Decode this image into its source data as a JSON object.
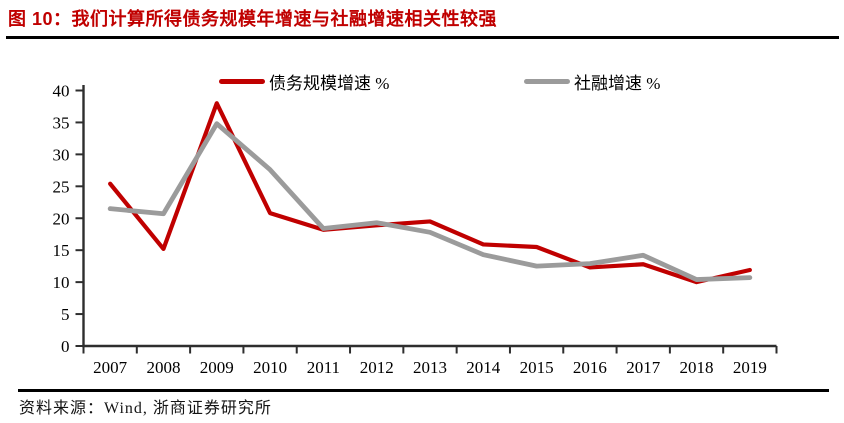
{
  "header": {
    "title": "图 10：我们计算所得债务规模年增速与社融增速相关性较强"
  },
  "footer": {
    "source": "资料来源：Wind, 浙商证券研究所"
  },
  "colors": {
    "title_red": "#c00000",
    "series_red": "#c00000",
    "series_gray": "#9b9b9b",
    "axis": "#2e2e2e",
    "rule_black": "#000000"
  },
  "chart_data": {
    "type": "line",
    "title": "",
    "xlabel": "",
    "ylabel": "",
    "categories": [
      "2007",
      "2008",
      "2009",
      "2010",
      "2011",
      "2012",
      "2013",
      "2014",
      "2015",
      "2016",
      "2017",
      "2018",
      "2019"
    ],
    "series": [
      {
        "name": "债务规模增速 %",
        "color": "#c00000",
        "values": [
          25.4,
          15.2,
          38.0,
          20.8,
          18.2,
          18.9,
          19.5,
          15.9,
          15.5,
          12.3,
          12.8,
          10.0,
          11.9
        ]
      },
      {
        "name": "社融增速 %",
        "color": "#9b9b9b",
        "values": [
          21.5,
          20.7,
          34.8,
          27.6,
          18.4,
          19.3,
          17.8,
          14.3,
          12.5,
          12.9,
          14.2,
          10.4,
          10.7
        ]
      }
    ],
    "ylim": [
      0,
      40
    ],
    "ytick_step": 5,
    "yticks": [
      0,
      5,
      10,
      15,
      20,
      25,
      30,
      35,
      40
    ],
    "grid": false,
    "legend_position": "top"
  }
}
